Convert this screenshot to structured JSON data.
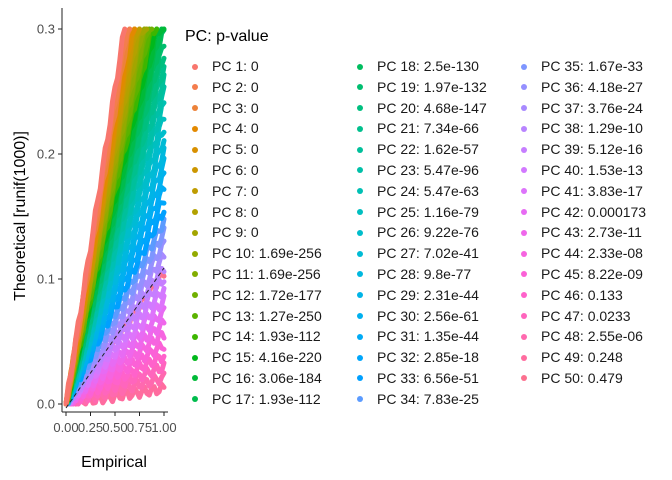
{
  "chart_data": {
    "type": "scatter",
    "title": "",
    "xlabel": "Empirical",
    "ylabel": "Theoretical [runif(1000)]",
    "xlim": [
      0,
      1
    ],
    "ylim": [
      0,
      0.3
    ],
    "x_ticks": [
      "0.00",
      "0.25",
      "0.50",
      "0.75",
      "1.00"
    ],
    "y_ticks": [
      "0.0",
      "0.1",
      "0.2",
      "0.3"
    ],
    "reference_line": "y = x (dashed)",
    "legend_title": "PC: p-value",
    "legend_position": "right",
    "series": [
      {
        "name": "PC 1: 0",
        "color": "#F8766D"
      },
      {
        "name": "PC 2: 0",
        "color": "#F47D4D"
      },
      {
        "name": "PC 3: 0",
        "color": "#EC8239"
      },
      {
        "name": "PC 4: 0",
        "color": "#E38900"
      },
      {
        "name": "PC 5: 0",
        "color": "#D89000"
      },
      {
        "name": "PC 6: 0",
        "color": "#CC9600"
      },
      {
        "name": "PC 7: 0",
        "color": "#BF9C00"
      },
      {
        "name": "PC 8: 0",
        "color": "#B2A100"
      },
      {
        "name": "PC 9: 0",
        "color": "#A3A500"
      },
      {
        "name": "PC 10: 1.69e-256",
        "color": "#93AA00"
      },
      {
        "name": "PC 11: 1.69e-256",
        "color": "#82AD00"
      },
      {
        "name": "PC 12: 1.72e-177",
        "color": "#70B000"
      },
      {
        "name": "PC 13: 1.27e-250",
        "color": "#5BB300"
      },
      {
        "name": "PC 14: 1.93e-112",
        "color": "#3DB600"
      },
      {
        "name": "PC 15: 4.16e-220",
        "color": "#00B81B"
      },
      {
        "name": "PC 16: 3.06e-184",
        "color": "#00BA38"
      },
      {
        "name": "PC 17: 1.93e-112",
        "color": "#00BC4D"
      },
      {
        "name": "PC 18: 2.5e-130",
        "color": "#00BD5F"
      },
      {
        "name": "PC 19: 1.97e-132",
        "color": "#00BE70"
      },
      {
        "name": "PC 20: 4.68e-147",
        "color": "#00BF7F"
      },
      {
        "name": "PC 21: 7.34e-66",
        "color": "#00C08D"
      },
      {
        "name": "PC 22: 1.62e-57",
        "color": "#00C09B"
      },
      {
        "name": "PC 23: 5.47e-96",
        "color": "#00C0A8"
      },
      {
        "name": "PC 24: 5.47e-63",
        "color": "#00C0B4"
      },
      {
        "name": "PC 25: 1.16e-79",
        "color": "#00BFC0"
      },
      {
        "name": "PC 26: 9.22e-76",
        "color": "#00BDCB"
      },
      {
        "name": "PC 27: 7.02e-41",
        "color": "#00BBD5"
      },
      {
        "name": "PC 28: 9.8e-77",
        "color": "#00B8DF"
      },
      {
        "name": "PC 29: 2.31e-44",
        "color": "#00B4E7"
      },
      {
        "name": "PC 30: 2.56e-61",
        "color": "#00B0EF"
      },
      {
        "name": "PC 31: 1.35e-44",
        "color": "#00ABF6"
      },
      {
        "name": "PC 32: 2.85e-18",
        "color": "#00A6FB"
      },
      {
        "name": "PC 33: 6.56e-51",
        "color": "#00A0FF"
      },
      {
        "name": "PC 34: 7.83e-25",
        "color": "#5B9BFF"
      },
      {
        "name": "PC 35: 1.67e-33",
        "color": "#7E96FF"
      },
      {
        "name": "PC 36: 4.18e-27",
        "color": "#9590FF"
      },
      {
        "name": "PC 37: 3.76e-24",
        "color": "#A88AFF"
      },
      {
        "name": "PC 38: 1.29e-10",
        "color": "#B884FF"
      },
      {
        "name": "PC 39: 5.12e-16",
        "color": "#C67EFF"
      },
      {
        "name": "PC 40: 1.53e-13",
        "color": "#D279FF"
      },
      {
        "name": "PC 41: 3.83e-17",
        "color": "#DD74FB"
      },
      {
        "name": "PC 42: 0.000173",
        "color": "#E76BF3"
      },
      {
        "name": "PC 43: 2.73e-11",
        "color": "#EF67EB"
      },
      {
        "name": "PC 44: 2.33e-08",
        "color": "#F664E0"
      },
      {
        "name": "PC 45: 8.22e-09",
        "color": "#FB61D7"
      },
      {
        "name": "PC 46: 0.133",
        "color": "#FF62CB"
      },
      {
        "name": "PC 47: 0.0233",
        "color": "#FF65BD"
      },
      {
        "name": "PC 48: 2.55e-06",
        "color": "#FF69AF"
      },
      {
        "name": "PC 49: 0.248",
        "color": "#FF6C9F"
      },
      {
        "name": "PC 50: 0.479",
        "color": "#FC718F"
      }
    ]
  }
}
